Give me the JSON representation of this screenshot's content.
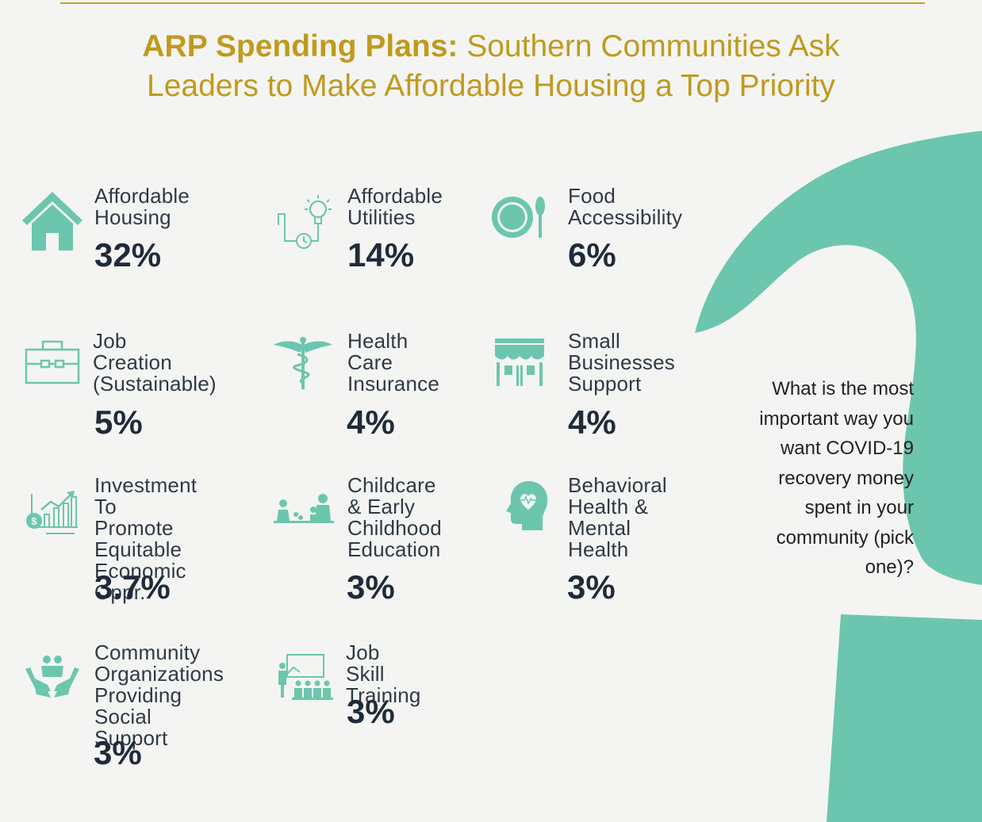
{
  "title": {
    "bold": "ARP Spending Plans:",
    "line1_rest": " Southern Communities Ask",
    "line2": "Leaders to Make Affordable Housing a Top Priority"
  },
  "question": "What is the most important way you want COVID-19 recovery money spent in your community (pick one)?",
  "colors": {
    "accent": "#6cc6ad",
    "title": "#c19a1e",
    "text": "#1f2b3a"
  },
  "items": [
    {
      "label": "Affordable\nHousing",
      "percent": "32%",
      "icon": "house-icon"
    },
    {
      "label": "Affordable\nUtilities",
      "percent": "14%",
      "icon": "utilities-icon"
    },
    {
      "label": "Food\nAccessibility",
      "percent": "6%",
      "icon": "plate-icon"
    },
    {
      "label": "Job\nCreation\n(Sustainable)",
      "percent": "5%",
      "icon": "briefcase-icon"
    },
    {
      "label": "Health\nCare\nInsurance",
      "percent": "4%",
      "icon": "caduceus-icon"
    },
    {
      "label": "Small\nBusinesses\nSupport",
      "percent": "4%",
      "icon": "storefront-icon"
    },
    {
      "label": "Investment\nTo Promote\nEquitable\nEconomic Oppr.",
      "percent": "3.7%",
      "icon": "growth-chart-icon"
    },
    {
      "label": "Childcare\n& Early\nChildhood\nEducation",
      "percent": "3%",
      "icon": "childcare-icon"
    },
    {
      "label": "Behavioral\nHealth &\nMental\nHealth",
      "percent": "3%",
      "icon": "head-heart-icon"
    },
    {
      "label": "Community\nOrganizations\nProviding\nSocial Support",
      "percent": "3%",
      "icon": "hands-family-icon"
    },
    {
      "label": "Job Skill\nTraining",
      "percent": "3%",
      "icon": "training-icon"
    }
  ]
}
